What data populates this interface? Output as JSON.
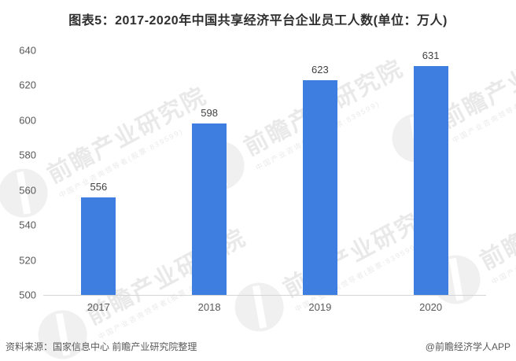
{
  "title": "图表5：2017-2020年中国共享经济平台企业员工人数(单位：万人)",
  "footer": {
    "source_note": "资料来源：国家信息中心 前瞻产业研究院整理",
    "brand_credit": "@前瞻经济学人APP"
  },
  "watermark": {
    "main": "前瞻产业研究院",
    "sub": "中国产业咨询领导者(股票:839599)"
  },
  "colors": {
    "bar": "#3d7ee0",
    "title_text": "#2e2e2e",
    "axis_text": "#595959",
    "data_label_text": "#3f3f3f",
    "axis_line": "#d6d6d6"
  },
  "chart_data": {
    "type": "bar",
    "categories": [
      "2017",
      "2018",
      "2019",
      "2020"
    ],
    "values": [
      556,
      598,
      623,
      631
    ],
    "title": "图表5：2017-2020年中国共享经济平台企业员工人数(单位：万人)",
    "xlabel": "",
    "ylabel": "",
    "unit": "万人",
    "ylim": [
      500,
      640
    ],
    "ytick_step": 20,
    "yticks": [
      500,
      520,
      540,
      560,
      580,
      600,
      620,
      640
    ],
    "grid": false,
    "legend": "none",
    "data_labels": true,
    "bar_color": "#3d7ee0"
  }
}
